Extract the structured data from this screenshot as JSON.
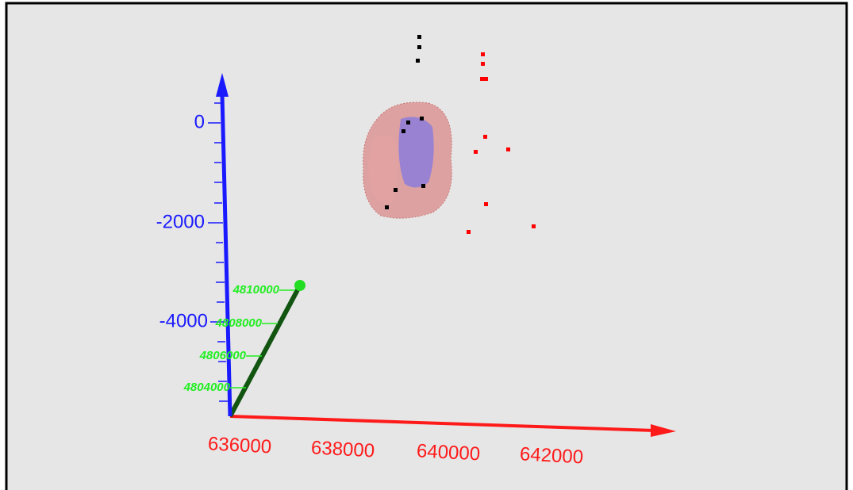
{
  "axes": {
    "vertical": {
      "ticks": [
        "0",
        "-2000",
        "-4000"
      ]
    },
    "horizontal": {
      "ticks": [
        "636000",
        "638000",
        "640000",
        "642000"
      ]
    },
    "depth": {
      "ticks": [
        "4810000",
        "4808000",
        "4806000",
        "4804000"
      ]
    }
  }
}
